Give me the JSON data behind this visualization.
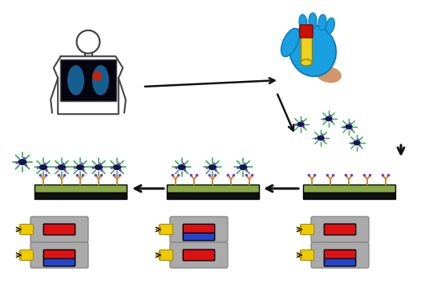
{
  "bg_color": "#ffffff",
  "body_color": "#444444",
  "lung_xray_bg": "#050510",
  "lung_color": "#1a6fa8",
  "tumor_color": "#cc2200",
  "glove_color": "#1a9fe0",
  "glove_dark": "#0077bb",
  "tube_liquid_color": "#f0d020",
  "tube_cap_color": "#cc1100",
  "skin_color": "#d4956a",
  "nanoparticle_body": "#0d1b4a",
  "nanoparticle_spikes": "#22aa44",
  "antibody_tip": "#8833cc",
  "antibody_stem": "#cc8833",
  "sensor_strip_green": "#88aa44",
  "sensor_base_black": "#111111",
  "cylinder_gray": "#aaaaaa",
  "cylinder_dark": "#888888",
  "yellow_cap": "#eecc00",
  "yellow_dark": "#aa8800",
  "red_band": "#dd1111",
  "blue_band": "#2244cc",
  "arrow_color": "#111111"
}
